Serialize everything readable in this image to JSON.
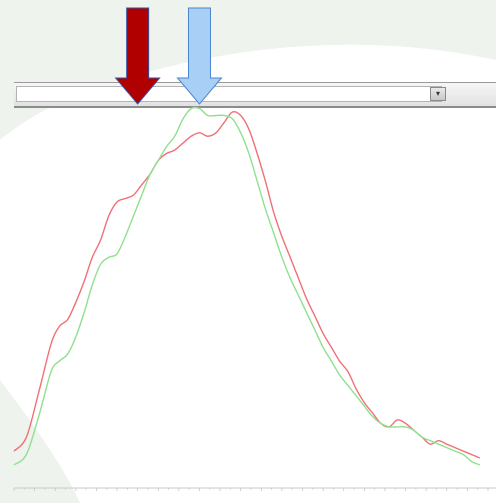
{
  "toolbar": {
    "address_value": "",
    "dropdown_icon": "chevron-down-icon"
  },
  "markers": [
    {
      "name": "",
      "color": "#a8cff6",
      "x": 1500
    },
    {
      "name": "",
      "color": "#b00000",
      "x": 1800
    }
  ],
  "colors": {
    "background_shape": "#eef3ee",
    "series_red": "#f07078",
    "series_green": "#8fe08f"
  },
  "chart_data": {
    "type": "line",
    "title": "",
    "xlabel": "",
    "ylabel": "",
    "xlim": [
      2400,
      100
    ],
    "ylim": [
      0,
      1
    ],
    "grid": false,
    "legend": "none",
    "x_ticks": [
      2200,
      1900,
      1500,
      1200,
      900
    ],
    "x_tick_labels": [
      "",
      "",
      "",
      "",
      ""
    ],
    "series": [
      {
        "color": "#f07078",
        "x": [
          2400,
          2340,
          2280,
          2220,
          2180,
          2140,
          2100,
          2060,
          2020,
          1980,
          1940,
          1900,
          1860,
          1820,
          1780,
          1740,
          1700,
          1660,
          1620,
          1580,
          1540,
          1500,
          1460,
          1420,
          1380,
          1340,
          1300,
          1260,
          1220,
          1180,
          1140,
          1100,
          1060,
          1020,
          980,
          940,
          900,
          860,
          820,
          780,
          740,
          700,
          660,
          620,
          580,
          540,
          500,
          460,
          420,
          380,
          340,
          300,
          260,
          220,
          180,
          140
        ],
        "y": [
          0.02,
          0.06,
          0.19,
          0.33,
          0.38,
          0.4,
          0.45,
          0.51,
          0.58,
          0.63,
          0.7,
          0.74,
          0.75,
          0.76,
          0.79,
          0.82,
          0.86,
          0.88,
          0.89,
          0.91,
          0.93,
          0.94,
          0.93,
          0.94,
          0.97,
          1.0,
          0.99,
          0.95,
          0.88,
          0.8,
          0.71,
          0.64,
          0.58,
          0.52,
          0.46,
          0.41,
          0.36,
          0.32,
          0.28,
          0.25,
          0.2,
          0.16,
          0.13,
          0.1,
          0.09,
          0.11,
          0.1,
          0.08,
          0.06,
          0.04,
          0.05,
          0.04,
          0.03,
          0.02,
          0.01,
          0.0
        ]
      },
      {
        "color": "#8fe08f",
        "x": [
          2400,
          2340,
          2280,
          2220,
          2180,
          2140,
          2100,
          2060,
          2020,
          1980,
          1940,
          1900,
          1860,
          1820,
          1780,
          1740,
          1700,
          1660,
          1620,
          1580,
          1540,
          1500,
          1460,
          1420,
          1380,
          1340,
          1300,
          1260,
          1220,
          1180,
          1140,
          1100,
          1060,
          1020,
          980,
          940,
          900,
          860,
          820,
          780,
          740,
          700,
          660,
          620,
          580,
          540,
          500,
          460,
          420,
          380,
          340,
          300,
          260,
          220,
          180,
          140
        ],
        "y": [
          -0.02,
          0.01,
          0.12,
          0.25,
          0.28,
          0.3,
          0.35,
          0.42,
          0.5,
          0.56,
          0.58,
          0.59,
          0.64,
          0.7,
          0.76,
          0.82,
          0.86,
          0.9,
          0.93,
          0.98,
          1.01,
          1.01,
          0.99,
          0.99,
          0.99,
          0.98,
          0.94,
          0.88,
          0.8,
          0.72,
          0.65,
          0.58,
          0.52,
          0.47,
          0.42,
          0.37,
          0.32,
          0.28,
          0.24,
          0.21,
          0.18,
          0.15,
          0.12,
          0.1,
          0.09,
          0.09,
          0.09,
          0.08,
          0.06,
          0.05,
          0.04,
          0.03,
          0.02,
          0.01,
          -0.01,
          -0.02
        ]
      }
    ]
  }
}
